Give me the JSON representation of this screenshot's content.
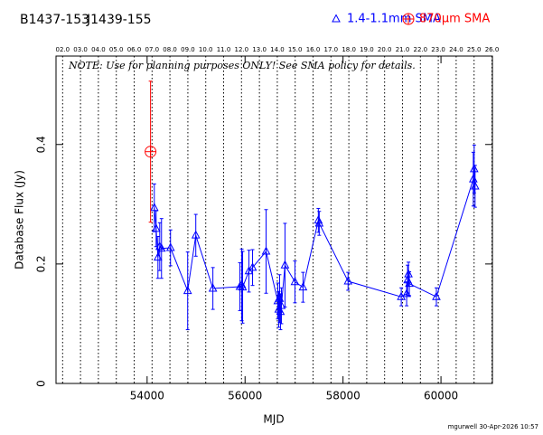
{
  "chart_data": {
    "type": "scatter",
    "titles": [
      "B1437-153",
      "J1439-155"
    ],
    "note": "NOTE: Use for planning purposes ONLY!  See SMA policy for details.",
    "footer": "mgurwell 30-Apr-2026 10:57",
    "xlabel": "MJD",
    "ylabel": "Database Flux (Jy)",
    "xlim": [
      52140,
      61050
    ],
    "ylim": [
      0,
      0.548
    ],
    "xticks": [
      54000,
      56000,
      58000,
      60000
    ],
    "yticks": [
      0,
      0.2,
      0.4
    ],
    "x2ticks": [
      {
        "value": 52275,
        "label": "02.0"
      },
      {
        "value": 52640,
        "label": "03.0"
      },
      {
        "value": 53005,
        "label": "04.0"
      },
      {
        "value": 53371,
        "label": "05.0"
      },
      {
        "value": 53736,
        "label": "06.0"
      },
      {
        "value": 54101,
        "label": "07.0"
      },
      {
        "value": 54466,
        "label": "08.0"
      },
      {
        "value": 54832,
        "label": "09.0"
      },
      {
        "value": 55197,
        "label": "10.0"
      },
      {
        "value": 55562,
        "label": "11.0"
      },
      {
        "value": 55927,
        "label": "12.0"
      },
      {
        "value": 56293,
        "label": "13.0"
      },
      {
        "value": 56658,
        "label": "14.0"
      },
      {
        "value": 57023,
        "label": "15.0"
      },
      {
        "value": 57388,
        "label": "16.0"
      },
      {
        "value": 57754,
        "label": "17.0"
      },
      {
        "value": 58119,
        "label": "18.0"
      },
      {
        "value": 58484,
        "label": "19.0"
      },
      {
        "value": 58849,
        "label": "20.0"
      },
      {
        "value": 59215,
        "label": "21.0"
      },
      {
        "value": 59580,
        "label": "22.0"
      },
      {
        "value": 59945,
        "label": "23.0"
      },
      {
        "value": 60310,
        "label": "24.0"
      },
      {
        "value": 60676,
        "label": "25.0"
      },
      {
        "value": 61041,
        "label": "26.0"
      }
    ],
    "legend": "top-right",
    "series": [
      {
        "name": "1.4-1.1mm SMA",
        "color": "#0000ff",
        "marker": "triangle",
        "line": true,
        "x": [
          54147,
          54184,
          54221,
          54258,
          54294,
          54478,
          54828,
          54994,
          55343,
          55895,
          55932,
          55950,
          56079,
          56153,
          56429,
          56668,
          56686,
          56705,
          56723,
          56742,
          56815,
          57018,
          57183,
          57496,
          57514,
          58103,
          59189,
          59299,
          59318,
          59336,
          59354,
          59906,
          60660,
          60678,
          60696
        ],
        "values": [
          0.294,
          0.259,
          0.211,
          0.229,
          0.226,
          0.227,
          0.155,
          0.248,
          0.159,
          0.162,
          0.165,
          0.161,
          0.188,
          0.194,
          0.221,
          0.138,
          0.124,
          0.142,
          0.12,
          0.13,
          0.198,
          0.17,
          0.161,
          0.273,
          0.268,
          0.171,
          0.145,
          0.15,
          0.173,
          0.183,
          0.167,
          0.145,
          0.342,
          0.359,
          0.33
        ],
        "errors": [
          0.04,
          0.03,
          0.035,
          0.04,
          0.05,
          0.03,
          0.065,
          0.035,
          0.035,
          0.04,
          0.06,
          0.06,
          0.035,
          0.03,
          0.07,
          0.03,
          0.03,
          0.04,
          0.03,
          0.03,
          0.07,
          0.035,
          0.025,
          0.02,
          0.02,
          0.015,
          0.015,
          0.02,
          0.025,
          0.02,
          0.02,
          0.015,
          0.045,
          0.04,
          0.035
        ]
      },
      {
        "name": "870μm SMA",
        "color": "#ff0000",
        "marker": "circle-plus",
        "line": false,
        "x": [
          54070
        ],
        "values": [
          0.388
        ],
        "errors": [
          0.118
        ]
      }
    ]
  }
}
